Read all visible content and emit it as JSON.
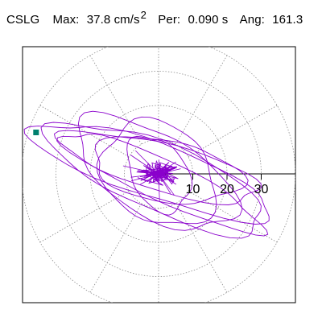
{
  "header": {
    "station": "CSLG",
    "max_label": "Max:",
    "max_value": "37.8 cm/s",
    "max_exponent": "2",
    "per_label": "Per:",
    "per_value": "0.090 s",
    "ang_label": "Ang:",
    "ang_value": "161.3"
  },
  "chart_data": {
    "type": "polar-orbit",
    "radial_ticks": [
      10,
      20,
      30
    ],
    "radial_max": 40,
    "radial_tick_labels": [
      "10",
      "20",
      "30"
    ],
    "angle_grid_step_deg": 30,
    "grid": true,
    "colors": {
      "trace": "#8a00cc",
      "marker": "#007f6e",
      "grid": "#8c8c8c",
      "axis": "#000000"
    },
    "peak_marker": {
      "magnitude": 37.8,
      "angle_deg": 161.3
    },
    "trace_ellipses": [
      {
        "a": 37,
        "b": 8,
        "angle": 161.3,
        "cx": -2,
        "cy": 1,
        "phase": 0.2
      },
      {
        "a": 34,
        "b": 10,
        "angle": 157,
        "cx": 0,
        "cy": -1,
        "phase": 1.1
      },
      {
        "a": 30,
        "b": 7,
        "angle": 165,
        "cx": 1,
        "cy": 2,
        "phase": 2.3
      },
      {
        "a": 26,
        "b": 12,
        "angle": 150,
        "cx": -1,
        "cy": 0,
        "phase": 0.7
      },
      {
        "a": 22,
        "b": 9,
        "angle": 170,
        "cx": 2,
        "cy": 1,
        "phase": 3.0
      },
      {
        "a": 18,
        "b": 14,
        "angle": 145,
        "cx": 0,
        "cy": 0,
        "phase": 1.8
      },
      {
        "a": 32,
        "b": 6,
        "angle": 155,
        "cx": 1,
        "cy": -2,
        "phase": 4.2
      },
      {
        "a": 12,
        "b": 8,
        "angle": 120,
        "cx": 0,
        "cy": 0,
        "phase": 2.6
      }
    ]
  }
}
